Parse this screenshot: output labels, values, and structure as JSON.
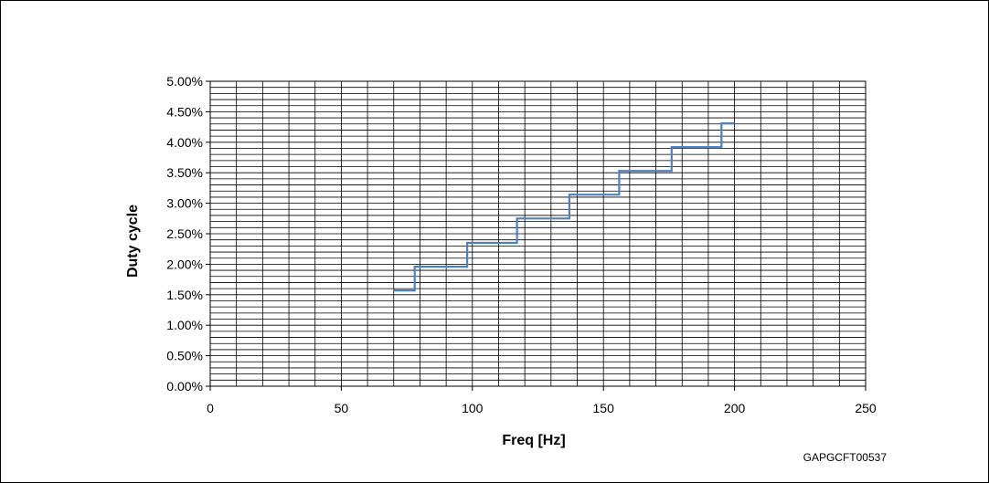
{
  "figure_code": "GAPGCFT00537",
  "chart_data": {
    "type": "line",
    "title": "",
    "xlabel": "Freq [Hz]",
    "ylabel": "Duty cycle",
    "xlim": [
      0,
      250
    ],
    "ylim": [
      0,
      0.05
    ],
    "x_ticks": [
      0,
      50,
      100,
      150,
      200,
      250
    ],
    "x_tick_labels": [
      "0",
      "50",
      "100",
      "150",
      "200",
      "250"
    ],
    "y_ticks": [
      0,
      0.005,
      0.01,
      0.015,
      0.02,
      0.025,
      0.03,
      0.035,
      0.04,
      0.045,
      0.05
    ],
    "y_tick_labels": [
      "0.00%",
      "0.50%",
      "1.00%",
      "1.50%",
      "2.00%",
      "2.50%",
      "3.00%",
      "3.50%",
      "4.00%",
      "4.50%",
      "5.00%"
    ],
    "grid": true,
    "line_color": "#4f81bd",
    "series": [
      {
        "x": [
          70,
          78,
          78,
          98,
          98,
          117,
          117,
          137,
          137,
          156,
          156,
          176,
          176,
          195,
          195,
          200
        ],
        "y": [
          0.0157,
          0.0157,
          0.0196,
          0.0196,
          0.0235,
          0.0235,
          0.0275,
          0.0275,
          0.0314,
          0.0314,
          0.0353,
          0.0353,
          0.0392,
          0.0392,
          0.0431,
          0.0431
        ]
      }
    ]
  }
}
